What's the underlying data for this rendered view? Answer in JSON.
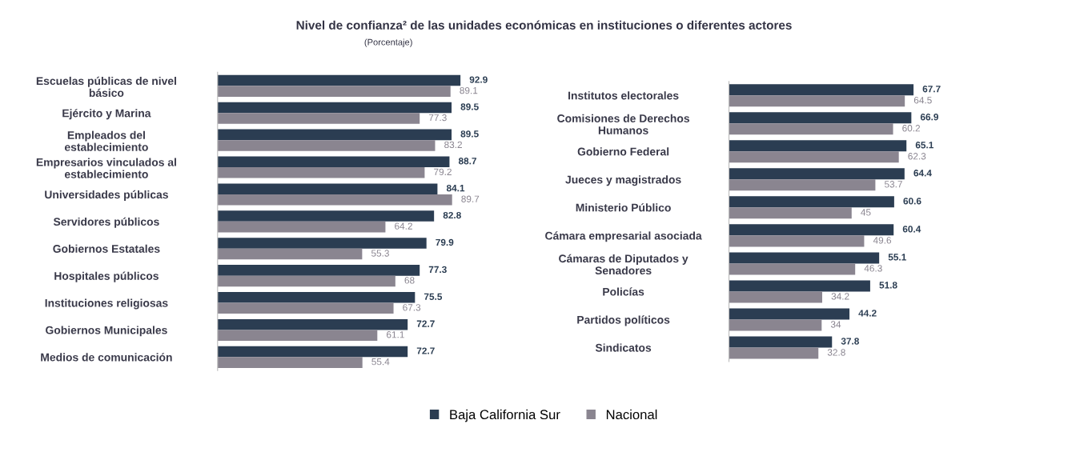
{
  "chart_data": [
    {
      "type": "bar",
      "orientation": "horizontal",
      "title": "Nivel de confianza² de las unidades económicas en instituciones o diferentes actores",
      "subtitle": "(Porcentaje)",
      "categories": [
        "Escuelas públicas de nivel\nbásico",
        "Ejército y Marina",
        "Empleados del\nestablecimiento",
        "Empresarios vinculados al\nestablecimiento",
        "Universidades públicas",
        "Servidores públicos",
        "Gobiernos Estatales",
        "Hospitales públicos",
        "Instituciones religiosas",
        "Gobiernos Municipales",
        "Medios de comunicación"
      ],
      "series": [
        {
          "name": "Baja California Sur",
          "color": "#2b3d52",
          "values": [
            92.9,
            89.5,
            89.5,
            88.7,
            84.1,
            82.8,
            79.9,
            77.3,
            75.5,
            72.7,
            72.7
          ]
        },
        {
          "name": "Nacional",
          "color": "#8a8590",
          "values": [
            89.1,
            77.3,
            83.2,
            79.2,
            89.7,
            64.2,
            55.3,
            68.0,
            67.3,
            61.1,
            55.4
          ]
        }
      ],
      "data_labels": true,
      "legend": "bottom"
    },
    {
      "type": "bar",
      "orientation": "horizontal",
      "categories": [
        "Institutos electorales",
        "Comisiones de Derechos\nHumanos",
        "Gobierno Federal",
        "Jueces y magistrados",
        "Ministerio Público",
        "Cámara empresarial asociada",
        "Cámaras de Diputados y\nSenadores",
        "Policías",
        "Partidos políticos",
        "Sindicatos"
      ],
      "series": [
        {
          "color": "#2b3d52",
          "values": [
            67.7,
            66.9,
            65.1,
            64.4,
            60.6,
            60.4,
            55.1,
            51.8,
            44.2,
            37.8
          ]
        },
        {
          "color": "#8a8590",
          "values": [
            64.5,
            60.2,
            62.3,
            53.7,
            45.0,
            49.6,
            46.3,
            34.2,
            34.0,
            32.8
          ]
        }
      ],
      "data_labels": true
    }
  ]
}
